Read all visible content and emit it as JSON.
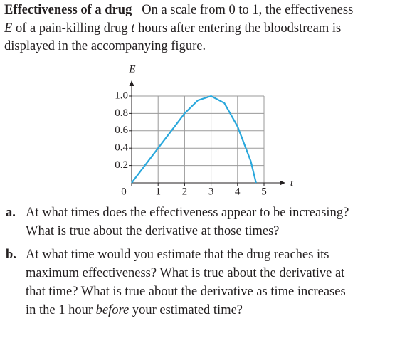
{
  "intro": {
    "heading": "Effectiveness of a drug",
    "lines": [
      [
        "On a scale from 0 to 1, the effectiveness"
      ],
      [
        "E",
        " of a pain-killing drug ",
        "t",
        " hours after entering the bloodstream is"
      ],
      [
        "displayed in the accompanying figure."
      ]
    ]
  },
  "chart_data": {
    "type": "line",
    "x_label": "t",
    "y_label": "E",
    "x": [
      0,
      0.5,
      1,
      1.5,
      2,
      2.5,
      3,
      3.5,
      4,
      4.5,
      4.7
    ],
    "series": [
      {
        "name": "E",
        "color": "#2aa8dc",
        "values": [
          0,
          0.2,
          0.4,
          0.6,
          0.8,
          0.95,
          1.0,
          0.92,
          0.65,
          0.25,
          0
        ]
      }
    ],
    "xlim": [
      0,
      5
    ],
    "ylim": [
      0,
      1
    ],
    "xticks": [
      0,
      1,
      2,
      3,
      4,
      5
    ],
    "yticks": [
      0.2,
      0.4,
      0.6,
      0.8,
      {
        "value": 1,
        "label": "1.0"
      }
    ],
    "grid": true
  },
  "questions": [
    {
      "label": "a.",
      "lines": [
        [
          "At what times does the effectiveness appear to be increasing?"
        ],
        [
          "What is true about the derivative at those times?"
        ]
      ]
    },
    {
      "label": "b.",
      "lines": [
        [
          "At what time would you estimate that the drug reaches its"
        ],
        [
          "maximum effectiveness? What is true about the derivative at"
        ],
        [
          "that time? What is true about the derivative as time increases"
        ],
        [
          "in the 1 hour ",
          "before",
          " your estimated time?"
        ]
      ]
    }
  ]
}
